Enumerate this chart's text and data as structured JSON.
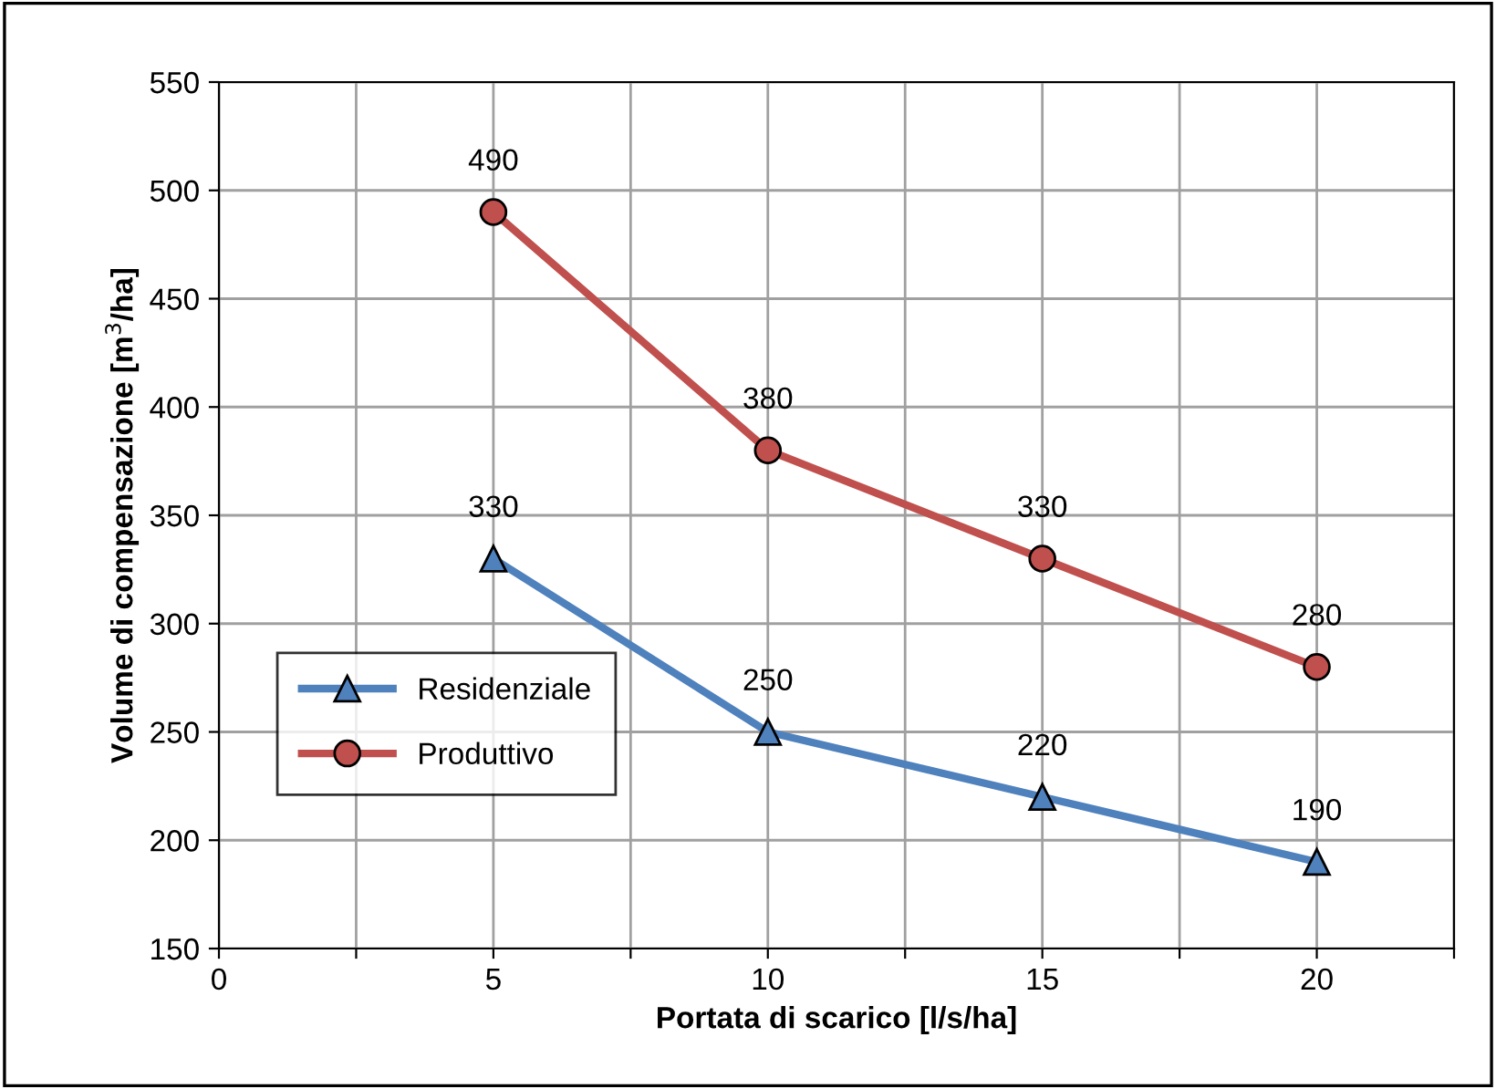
{
  "chart_data": {
    "type": "line",
    "xlabel": "Portata di scarico [l/s/ha]",
    "ylabel": "Volume di compensazione [m$^{3}$/ha]",
    "x": [
      5,
      10,
      15,
      20
    ],
    "series": [
      {
        "name": "Residenziale",
        "color": "#4f81bd",
        "values": [
          330,
          250,
          220,
          190
        ],
        "marker": "triangle"
      },
      {
        "name": "Produttivo",
        "color": "#c0504d",
        "values": [
          490,
          380,
          330,
          280
        ],
        "marker": "circle"
      }
    ],
    "xlim": [
      0,
      22.5
    ],
    "xticks": [
      0,
      {
        "value": 2.5,
        "label": null
      },
      5,
      {
        "value": 7.5,
        "label": null
      },
      10,
      {
        "value": 12.5,
        "label": null
      },
      15,
      {
        "value": 17.5,
        "label": null
      },
      20,
      {
        "value": 22.5,
        "label": null
      }
    ],
    "ylim": [
      150,
      550
    ],
    "yticks": [
      150,
      200,
      250,
      300,
      350,
      400,
      450,
      500,
      550
    ],
    "grid": true,
    "legend": "bottom left",
    "data_labels": true,
    "line_style": "solid"
  }
}
